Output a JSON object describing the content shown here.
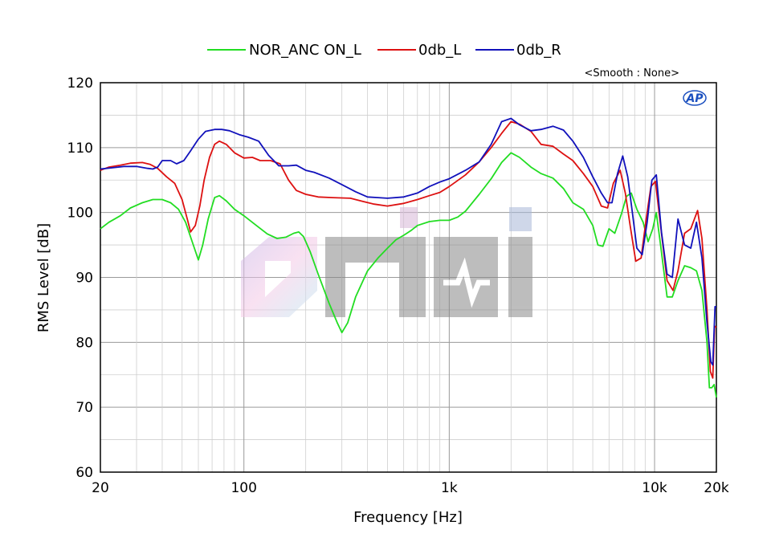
{
  "chart_data": {
    "type": "line",
    "xlabel": "Frequency [Hz]",
    "ylabel": "RMS Level [dB]",
    "x_scale": "log",
    "xlim": [
      20,
      20000
    ],
    "ylim": [
      60,
      120
    ],
    "grid": true,
    "legend_position": "top-center",
    "annotation": "<Smooth : None>",
    "watermark": "Oniki",
    "logo": "AP",
    "x_ticks": [
      {
        "value": 20,
        "label": "20"
      },
      {
        "value": 100,
        "label": "100"
      },
      {
        "value": 1000,
        "label": "1k"
      },
      {
        "value": 10000,
        "label": "10k"
      },
      {
        "value": 20000,
        "label": "20k"
      }
    ],
    "y_ticks": [
      60,
      70,
      80,
      90,
      100,
      110,
      120
    ],
    "series": [
      {
        "name": "NOR_ANC ON_L",
        "color": "#22dd22",
        "points": [
          [
            20,
            97.5
          ],
          [
            22,
            98.5
          ],
          [
            25,
            99.5
          ],
          [
            28,
            100.7
          ],
          [
            32,
            101.5
          ],
          [
            36,
            102
          ],
          [
            40,
            102
          ],
          [
            44,
            101.5
          ],
          [
            48,
            100.5
          ],
          [
            52,
            98.5
          ],
          [
            56,
            95.5
          ],
          [
            60,
            92.7
          ],
          [
            63,
            95
          ],
          [
            67,
            99
          ],
          [
            72,
            102.3
          ],
          [
            76,
            102.6
          ],
          [
            82,
            101.8
          ],
          [
            90,
            100.5
          ],
          [
            100,
            99.5
          ],
          [
            115,
            98
          ],
          [
            130,
            96.7
          ],
          [
            145,
            96
          ],
          [
            160,
            96.2
          ],
          [
            175,
            96.8
          ],
          [
            185,
            97
          ],
          [
            195,
            96.3
          ],
          [
            210,
            94
          ],
          [
            230,
            90.5
          ],
          [
            260,
            86
          ],
          [
            285,
            83
          ],
          [
            300,
            81.5
          ],
          [
            320,
            83
          ],
          [
            350,
            87
          ],
          [
            400,
            91
          ],
          [
            450,
            93
          ],
          [
            500,
            94.5
          ],
          [
            550,
            95.8
          ],
          [
            600,
            96.5
          ],
          [
            650,
            97.2
          ],
          [
            700,
            98
          ],
          [
            800,
            98.6
          ],
          [
            900,
            98.8
          ],
          [
            1000,
            98.8
          ],
          [
            1100,
            99.3
          ],
          [
            1200,
            100.2
          ],
          [
            1400,
            102.8
          ],
          [
            1600,
            105.2
          ],
          [
            1800,
            107.7
          ],
          [
            2000,
            109.2
          ],
          [
            2200,
            108.5
          ],
          [
            2500,
            107
          ],
          [
            2800,
            106
          ],
          [
            3200,
            105.3
          ],
          [
            3600,
            103.7
          ],
          [
            4000,
            101.5
          ],
          [
            4500,
            100.5
          ],
          [
            5000,
            98
          ],
          [
            5300,
            95
          ],
          [
            5600,
            94.8
          ],
          [
            6000,
            97.5
          ],
          [
            6400,
            96.8
          ],
          [
            6900,
            99.8
          ],
          [
            7300,
            102.5
          ],
          [
            7700,
            103
          ],
          [
            8200,
            100.5
          ],
          [
            8800,
            98.5
          ],
          [
            9300,
            95.5
          ],
          [
            9800,
            97.5
          ],
          [
            10200,
            100
          ],
          [
            10700,
            95
          ],
          [
            11500,
            87
          ],
          [
            12200,
            87
          ],
          [
            13000,
            89.5
          ],
          [
            14000,
            91.8
          ],
          [
            15000,
            91.5
          ],
          [
            16000,
            91
          ],
          [
            17000,
            88
          ],
          [
            18000,
            80
          ],
          [
            18500,
            73
          ],
          [
            19000,
            73
          ],
          [
            19500,
            73.5
          ],
          [
            20000,
            71.5
          ]
        ]
      },
      {
        "name": "0db_L",
        "color": "#dd1111",
        "points": [
          [
            20,
            106.5
          ],
          [
            22,
            107
          ],
          [
            25,
            107.3
          ],
          [
            28,
            107.6
          ],
          [
            32,
            107.7
          ],
          [
            35,
            107.4
          ],
          [
            38,
            106.8
          ],
          [
            42,
            105.5
          ],
          [
            46,
            104.5
          ],
          [
            50,
            102
          ],
          [
            53,
            99
          ],
          [
            55,
            97
          ],
          [
            58,
            98
          ],
          [
            61,
            101
          ],
          [
            64,
            105
          ],
          [
            68,
            108.5
          ],
          [
            72,
            110.5
          ],
          [
            76,
            111
          ],
          [
            82,
            110.5
          ],
          [
            90,
            109.2
          ],
          [
            100,
            108.4
          ],
          [
            110,
            108.5
          ],
          [
            120,
            108
          ],
          [
            135,
            108
          ],
          [
            150,
            107.5
          ],
          [
            165,
            105
          ],
          [
            180,
            103.4
          ],
          [
            200,
            102.8
          ],
          [
            230,
            102.4
          ],
          [
            270,
            102.3
          ],
          [
            330,
            102.2
          ],
          [
            380,
            101.7
          ],
          [
            430,
            101.3
          ],
          [
            500,
            101
          ],
          [
            600,
            101.4
          ],
          [
            700,
            102
          ],
          [
            800,
            102.6
          ],
          [
            900,
            103.1
          ],
          [
            1000,
            104
          ],
          [
            1200,
            105.8
          ],
          [
            1400,
            107.8
          ],
          [
            1600,
            110
          ],
          [
            1800,
            112.2
          ],
          [
            2000,
            114
          ],
          [
            2200,
            113.6
          ],
          [
            2500,
            112.5
          ],
          [
            2800,
            110.5
          ],
          [
            3200,
            110.2
          ],
          [
            3600,
            109
          ],
          [
            4000,
            108
          ],
          [
            4500,
            106
          ],
          [
            5000,
            104
          ],
          [
            5500,
            101
          ],
          [
            5900,
            100.7
          ],
          [
            6300,
            104.5
          ],
          [
            6800,
            106.5
          ],
          [
            7200,
            103
          ],
          [
            7600,
            98
          ],
          [
            8100,
            92.5
          ],
          [
            8600,
            93
          ],
          [
            9100,
            99
          ],
          [
            9600,
            104
          ],
          [
            10100,
            104.8
          ],
          [
            10700,
            98
          ],
          [
            11500,
            89.5
          ],
          [
            12300,
            88
          ],
          [
            13000,
            91
          ],
          [
            14000,
            96.8
          ],
          [
            15000,
            97.5
          ],
          [
            16200,
            100.3
          ],
          [
            17000,
            96
          ],
          [
            18000,
            85
          ],
          [
            18700,
            75.5
          ],
          [
            19200,
            74.5
          ],
          [
            19600,
            82.5
          ],
          [
            20000,
            82.3
          ]
        ]
      },
      {
        "name": "0db_R",
        "color": "#1111bb",
        "points": [
          [
            20,
            106.7
          ],
          [
            23,
            106.9
          ],
          [
            26,
            107.1
          ],
          [
            30,
            107.1
          ],
          [
            34,
            106.8
          ],
          [
            36,
            106.7
          ],
          [
            38,
            107
          ],
          [
            40,
            108
          ],
          [
            44,
            108
          ],
          [
            47,
            107.5
          ],
          [
            51,
            108
          ],
          [
            55,
            109.5
          ],
          [
            60,
            111.3
          ],
          [
            65,
            112.5
          ],
          [
            72,
            112.8
          ],
          [
            78,
            112.8
          ],
          [
            85,
            112.6
          ],
          [
            95,
            112
          ],
          [
            105,
            111.6
          ],
          [
            118,
            111
          ],
          [
            132,
            108.8
          ],
          [
            148,
            107.2
          ],
          [
            165,
            107.2
          ],
          [
            180,
            107.3
          ],
          [
            200,
            106.5
          ],
          [
            220,
            106.2
          ],
          [
            260,
            105.3
          ],
          [
            300,
            104.3
          ],
          [
            350,
            103.2
          ],
          [
            400,
            102.4
          ],
          [
            450,
            102.3
          ],
          [
            500,
            102.2
          ],
          [
            600,
            102.4
          ],
          [
            700,
            103
          ],
          [
            800,
            104
          ],
          [
            900,
            104.7
          ],
          [
            1000,
            105.2
          ],
          [
            1200,
            106.5
          ],
          [
            1400,
            107.8
          ],
          [
            1600,
            110.5
          ],
          [
            1800,
            114
          ],
          [
            2000,
            114.5
          ],
          [
            2200,
            113.5
          ],
          [
            2500,
            112.6
          ],
          [
            2800,
            112.8
          ],
          [
            3200,
            113.3
          ],
          [
            3600,
            112.7
          ],
          [
            4000,
            111
          ],
          [
            4500,
            108.5
          ],
          [
            5000,
            105.5
          ],
          [
            5500,
            103
          ],
          [
            5900,
            101.5
          ],
          [
            6200,
            101.5
          ],
          [
            6600,
            106
          ],
          [
            7000,
            108.7
          ],
          [
            7400,
            105.5
          ],
          [
            7800,
            100
          ],
          [
            8200,
            94.5
          ],
          [
            8700,
            93.5
          ],
          [
            9200,
            98.5
          ],
          [
            9700,
            105
          ],
          [
            10200,
            105.8
          ],
          [
            10800,
            97
          ],
          [
            11500,
            90.5
          ],
          [
            12200,
            90
          ],
          [
            13000,
            99
          ],
          [
            14000,
            95
          ],
          [
            15000,
            94.5
          ],
          [
            16000,
            98.5
          ],
          [
            17000,
            93
          ],
          [
            18000,
            83
          ],
          [
            18800,
            77
          ],
          [
            19200,
            76.5
          ],
          [
            19700,
            85.5
          ],
          [
            20000,
            85.5
          ]
        ]
      }
    ]
  }
}
